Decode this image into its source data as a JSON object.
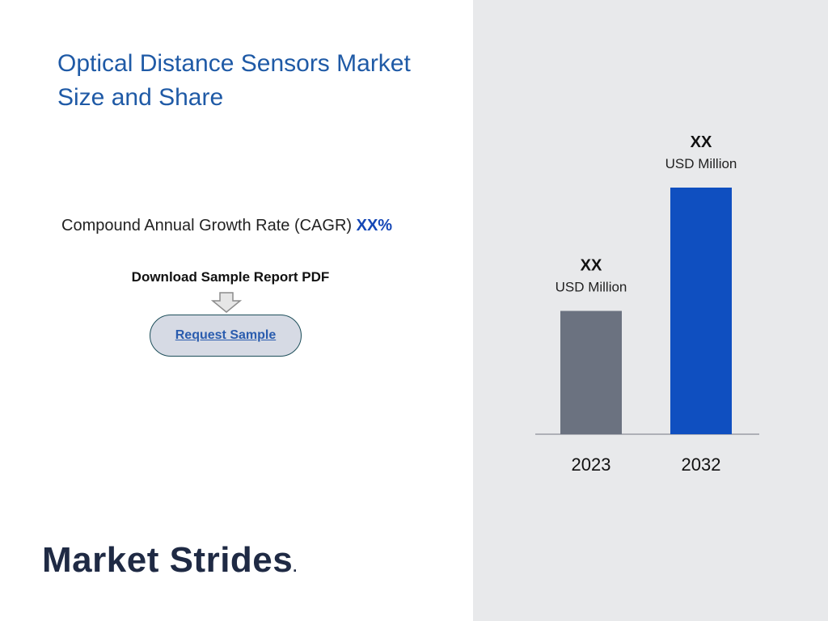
{
  "header": {
    "title_line1": "Optical Distance Sensors Market",
    "title_line2": "Size and Share"
  },
  "cagr": {
    "label": "Compound Annual Growth Rate (CAGR)",
    "value": "XX%"
  },
  "download": {
    "label": "Download Sample Report PDF",
    "arrow_icon": "down-arrow-icon",
    "button_label": "Request Sample"
  },
  "logo": {
    "text": "Market Strides",
    "suffix": "."
  },
  "colors": {
    "title": "#1f5aa6",
    "accent": "#1547b6",
    "bar_2023": "#6b7280",
    "bar_2032": "#0f4fc0",
    "panel_bg": "#e8e9eb"
  },
  "chart_data": {
    "type": "bar",
    "categories": [
      "2023",
      "2032"
    ],
    "values": [
      1.0,
      2.0
    ],
    "value_labels": [
      "XX",
      "XX"
    ],
    "unit_labels": [
      "USD Million",
      "USD Million"
    ],
    "title": "",
    "xlabel": "",
    "ylabel": "",
    "ylim": [
      0,
      2.0
    ],
    "grid": false,
    "legend": "none"
  }
}
